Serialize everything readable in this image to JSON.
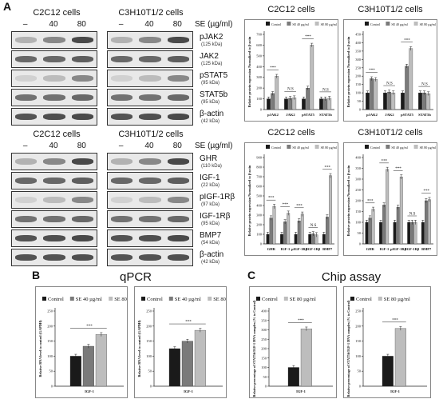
{
  "panel_letters": {
    "a": "A",
    "b": "B",
    "c": "C"
  },
  "section_b_title": "qPCR",
  "section_c_title": "Chip assay",
  "blots": {
    "se_label": "SE (µg/ml)",
    "lanes": [
      "–",
      "40",
      "80"
    ],
    "c2c12_title": "C2C12 cells",
    "c3h_title": "C3H10T1/2 cells",
    "top_proteins": [
      {
        "name": "pJAK2",
        "kda": "(125 kDa)"
      },
      {
        "name": "JAK2",
        "kda": "(125 kDa)"
      },
      {
        "name": "pSTAT5",
        "kda": "(95 kDa)"
      },
      {
        "name": "STAT5b",
        "kda": "(95 kDa)"
      },
      {
        "name": "β-actin",
        "kda": "(42 kDa)"
      }
    ],
    "bottom_proteins": [
      {
        "name": "GHR",
        "kda": "(110 kDa)"
      },
      {
        "name": "IGF-1",
        "kda": "(22 kDa)"
      },
      {
        "name": "pIGF-1Rβ",
        "kda": "(97 kDa)"
      },
      {
        "name": "IGF-1Rβ",
        "kda": "(95 kDa)"
      },
      {
        "name": "BMP7",
        "kda": "(54 kDa)"
      },
      {
        "name": "β-actin",
        "kda": "(42 kDa)"
      }
    ]
  },
  "colors": {
    "control": "#1a1a1a",
    "se40": "#7a7a7a",
    "se80": "#bdbdbd"
  },
  "chart_data": [
    {
      "type": "bar",
      "title": "C2C12 cells",
      "ylabel": "Relative protein expression Normalized to β-actin",
      "ylim": [
        0,
        700
      ],
      "yticks": [
        0,
        100,
        200,
        300,
        400,
        500,
        600,
        700
      ],
      "categories": [
        "pJAK2",
        "JAK2",
        "pSTAT5",
        "STAT5b"
      ],
      "legend": [
        "Control",
        "SE 40 µg/ml",
        "SE 80 µg/ml"
      ],
      "series": [
        {
          "name": "Control",
          "values": [
            100,
            100,
            100,
            100
          ]
        },
        {
          "name": "SE 40 µg/ml",
          "values": [
            150,
            105,
            200,
            100
          ]
        },
        {
          "name": "SE 80 µg/ml",
          "values": [
            310,
            110,
            600,
            105
          ]
        }
      ],
      "annotations": [
        "***",
        "#",
        "N.S",
        "***",
        "#",
        "N.S"
      ]
    },
    {
      "type": "bar",
      "title": "C3H10T1/2 cells",
      "ylabel": "Relative protein expression Normalized to β-actin",
      "ylim": [
        0,
        450
      ],
      "yticks": [
        0,
        50,
        100,
        150,
        200,
        250,
        300,
        350,
        400,
        450
      ],
      "categories": [
        "pJAK2",
        "JAK2",
        "pSTAT5",
        "STAT5b"
      ],
      "legend": [
        "Control",
        "SE 40 µg/ml",
        "SE 80 µg/ml"
      ],
      "series": [
        {
          "name": "Control",
          "values": [
            100,
            100,
            100,
            100
          ]
        },
        {
          "name": "SE 40 µg/ml",
          "values": [
            185,
            105,
            260,
            100
          ]
        },
        {
          "name": "SE 80 µg/ml",
          "values": [
            180,
            100,
            365,
            95
          ]
        }
      ],
      "annotations": [
        "***",
        "#",
        "#",
        "N.S",
        "***",
        "#",
        "#",
        "N.S"
      ]
    },
    {
      "type": "bar",
      "title": "C2C12 cells",
      "ylabel": "Relative protein expression Normalized to β-actin",
      "ylim": [
        0,
        900
      ],
      "yticks": [
        0,
        100,
        200,
        300,
        400,
        500,
        600,
        700,
        800,
        900
      ],
      "categories": [
        "GHR",
        "IGF-1",
        "pIGF-1Rβ",
        "IGF-1Rβ",
        "BMP7"
      ],
      "legend": [
        "Control",
        "SE 40 µg/ml",
        "SE 80 µg/ml"
      ],
      "series": [
        {
          "name": "Control",
          "values": [
            100,
            100,
            100,
            100,
            100
          ]
        },
        {
          "name": "SE 40 µg/ml",
          "values": [
            270,
            230,
            240,
            105,
            280
          ]
        },
        {
          "name": "SE 80 µg/ml",
          "values": [
            390,
            320,
            310,
            95,
            710
          ]
        }
      ],
      "annotations": [
        "***",
        "#",
        "***",
        "#",
        "***",
        "#",
        "N.S",
        "***",
        "#"
      ]
    },
    {
      "type": "bar",
      "title": "C3H10T1/2 cells",
      "ylabel": "Relative protein expression Normalized to β-actin",
      "ylim": [
        0,
        400
      ],
      "yticks": [
        0,
        50,
        100,
        150,
        200,
        250,
        300,
        350,
        400
      ],
      "categories": [
        "GHR",
        "IGF-1",
        "pIGF-1Rβ",
        "IGF-1Rβ",
        "BMP7"
      ],
      "legend": [
        "Control",
        "SE 40 µg/ml",
        "SE 80 µg/ml"
      ],
      "series": [
        {
          "name": "Control",
          "values": [
            100,
            100,
            100,
            100,
            100
          ]
        },
        {
          "name": "SE 40 µg/ml",
          "values": [
            120,
            180,
            170,
            100,
            200
          ]
        },
        {
          "name": "SE 80 µg/ml",
          "values": [
            160,
            345,
            310,
            100,
            205
          ]
        }
      ],
      "annotations": [
        "***",
        "#",
        "***",
        "#",
        "#",
        "***",
        "#",
        "N.S",
        "***",
        "#"
      ]
    },
    {
      "type": "bar",
      "title": "C2C12 cells",
      "ylabel": "Relative RNA level to control (GAPDH)",
      "ylim": [
        0,
        250
      ],
      "yticks": [
        0,
        50,
        100,
        150,
        200,
        250
      ],
      "categories": [
        "IGF-1"
      ],
      "legend": [
        "Control",
        "SE 40 µg/ml",
        "SE 80 µg/ml"
      ],
      "series": [
        {
          "name": "Control",
          "values": [
            100
          ]
        },
        {
          "name": "SE 40 µg/ml",
          "values": [
            133
          ]
        },
        {
          "name": "SE 80 µg/ml",
          "values": [
            172
          ]
        }
      ],
      "annotations": [
        "***",
        "#"
      ]
    },
    {
      "type": "bar",
      "title": "C3H10T1/2 cells",
      "ylabel": "Relative RNA level to control (GAPDH)",
      "ylim": [
        0,
        250
      ],
      "yticks": [
        0,
        50,
        100,
        150,
        200,
        250
      ],
      "categories": [
        "IGF-1"
      ],
      "legend": [
        "Control",
        "SE 40 µg/ml",
        "SE 80 µg/ml"
      ],
      "series": [
        {
          "name": "Control",
          "values": [
            125
          ]
        },
        {
          "name": "SE 40 µg/ml",
          "values": [
            150
          ]
        },
        {
          "name": "SE 80 µg/ml",
          "values": [
            186
          ]
        }
      ],
      "annotations": [
        "***",
        "#"
      ]
    },
    {
      "type": "bar",
      "title": "C2C12 cells",
      "ylabel": "Relative percentage of STAT5b/IGF-1 DNA complex (% to Control)",
      "ylim": [
        0,
        400
      ],
      "yticks": [
        0,
        50,
        100,
        150,
        200,
        250,
        300,
        350,
        400
      ],
      "categories": [
        "IGF-1"
      ],
      "legend": [
        "Control",
        "SE 80 µg/ml"
      ],
      "series": [
        {
          "name": "Control",
          "values": [
            100
          ]
        },
        {
          "name": "SE 80 µg/ml",
          "values": [
            305
          ]
        }
      ],
      "annotations": [
        "***"
      ]
    },
    {
      "type": "bar",
      "title": "C3H10T1/2 cells",
      "ylabel": "Relative percentage of STAT5b/IGF-1 DNA complex (% to Control)",
      "ylim": [
        0,
        250
      ],
      "yticks": [
        0,
        50,
        100,
        150,
        200,
        250
      ],
      "categories": [
        "IGF-1"
      ],
      "legend": [
        "Control",
        "SE 80 µg/ml"
      ],
      "series": [
        {
          "name": "Control",
          "values": [
            100
          ]
        },
        {
          "name": "SE 80 µg/ml",
          "values": [
            192
          ]
        }
      ],
      "annotations": [
        "***"
      ]
    }
  ]
}
